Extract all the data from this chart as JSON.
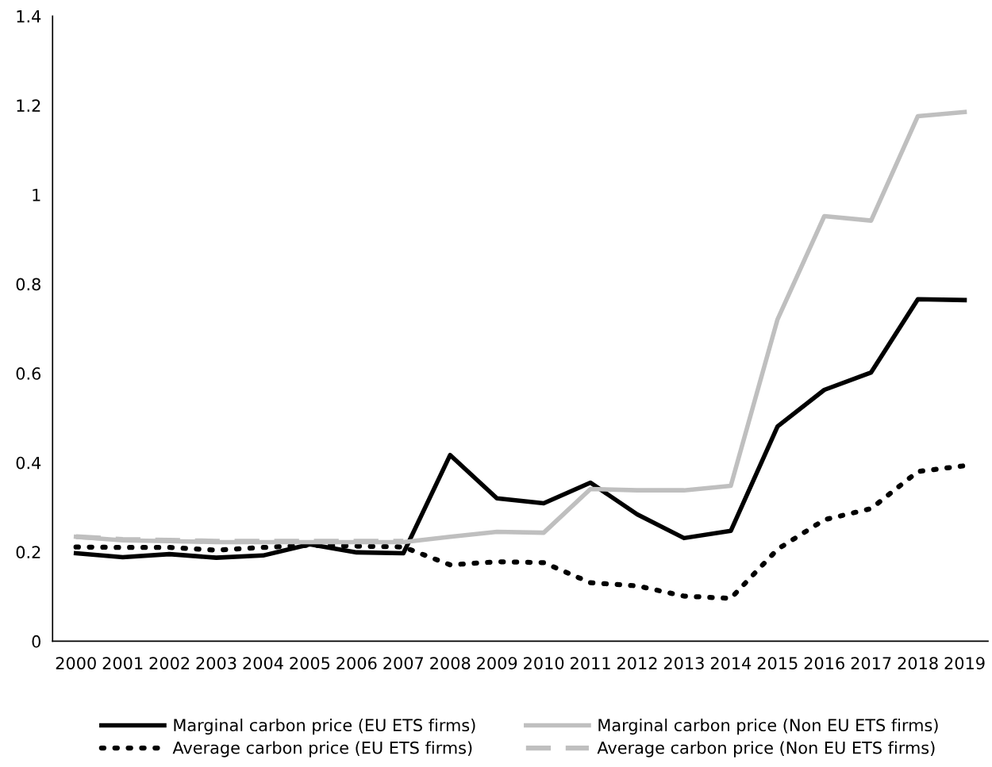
{
  "chart_data": {
    "type": "line",
    "categories": [
      "2000",
      "2001",
      "2002",
      "2003",
      "2004",
      "2005",
      "2006",
      "2007",
      "2008",
      "2009",
      "2010",
      "2011",
      "2012",
      "2013",
      "2014",
      "2015",
      "2016",
      "2017",
      "2018",
      "2019"
    ],
    "series": [
      {
        "name": "Marginal carbon price (EU ETS firms)",
        "color": "#000000",
        "line_style": "solid",
        "values": [
          0.197,
          0.188,
          0.195,
          0.187,
          0.192,
          0.217,
          0.199,
          0.197,
          0.417,
          0.32,
          0.309,
          0.355,
          0.284,
          0.231,
          0.247,
          0.481,
          0.563,
          0.602,
          0.766,
          0.764
        ]
      },
      {
        "name": "Average carbon price (EU ETS firms)",
        "color": "#000000",
        "line_style": "dotted",
        "values": [
          0.211,
          0.21,
          0.21,
          0.204,
          0.21,
          0.215,
          0.213,
          0.211,
          0.171,
          0.178,
          0.176,
          0.131,
          0.124,
          0.101,
          0.096,
          0.206,
          0.272,
          0.297,
          0.38,
          0.393
        ]
      },
      {
        "name": "Marginal carbon price (Non EU ETS firms)",
        "color": "#bfbfbf",
        "line_style": "solid",
        "values": [
          0.234,
          0.226,
          0.224,
          0.222,
          0.222,
          0.222,
          0.222,
          0.222,
          0.234,
          0.245,
          0.243,
          0.341,
          0.338,
          0.338,
          0.348,
          0.721,
          0.952,
          0.942,
          1.176,
          1.185
        ]
      },
      {
        "name": "Average carbon price (Non EU ETS firms)",
        "color": "#bfbfbf",
        "line_style": "dashed",
        "values": [
          0.234,
          0.228,
          0.226,
          0.224,
          0.224,
          0.224,
          0.224,
          0.224,
          null,
          null,
          null,
          null,
          null,
          null,
          null,
          null,
          null,
          null,
          null,
          null
        ]
      }
    ],
    "ylim": [
      0,
      1.4
    ],
    "yticks": [
      0,
      {
        "value": 0.2,
        "label": "0.2"
      },
      {
        "value": 0.4,
        "label": "0.4"
      },
      {
        "value": 0.6,
        "label": "0.6"
      },
      {
        "value": 0.8,
        "label": "0.8"
      },
      {
        "value": 1,
        "label": "1"
      },
      {
        "value": 1.2,
        "label": "1.2"
      },
      {
        "value": 1.4,
        "label": "1.4"
      }
    ],
    "grid": false,
    "legend": "bottom",
    "marker": "none"
  }
}
